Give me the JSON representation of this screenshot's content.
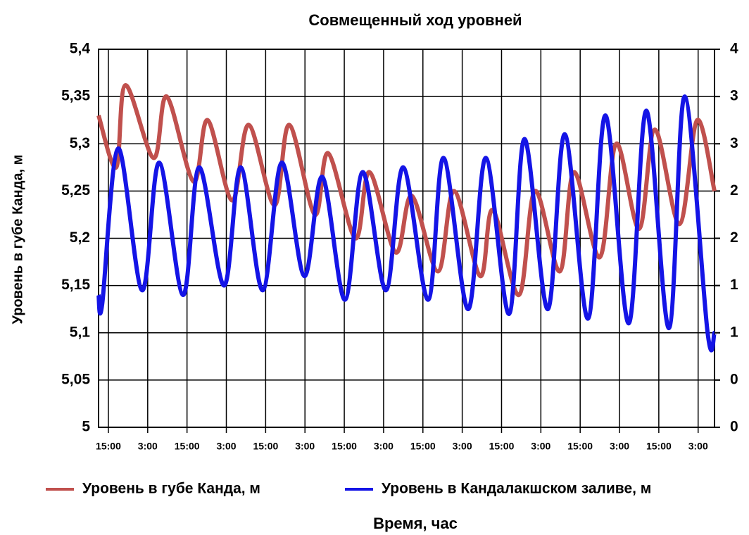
{
  "chart_data": {
    "type": "line",
    "title": "Совмещенный ход уровней",
    "xlabel": "Время, час",
    "ylabel": "Уровень в губе Канда, м",
    "xlim": [
      0,
      188
    ],
    "xticks": [
      {
        "value": 3,
        "label": "15:00"
      },
      {
        "value": 15,
        "label": "3:00"
      },
      {
        "value": 27,
        "label": "15:00"
      },
      {
        "value": 39,
        "label": "3:00"
      },
      {
        "value": 51,
        "label": "15:00"
      },
      {
        "value": 63,
        "label": "3:00"
      },
      {
        "value": 75,
        "label": "15:00"
      },
      {
        "value": 87,
        "label": "3:00"
      },
      {
        "value": 99,
        "label": "15:00"
      },
      {
        "value": 111,
        "label": "3:00"
      },
      {
        "value": 123,
        "label": "15:00"
      },
      {
        "value": 135,
        "label": "3:00"
      },
      {
        "value": 147,
        "label": "15:00"
      },
      {
        "value": 159,
        "label": "3:00"
      },
      {
        "value": 171,
        "label": "15:00"
      },
      {
        "value": 183,
        "label": "3:00"
      }
    ],
    "ylim": [
      5,
      5.4
    ],
    "yticks": [
      5,
      {
        "value": 5.05,
        "label": "5,05"
      },
      {
        "value": 5.1,
        "label": "5,1"
      },
      {
        "value": 5.15,
        "label": "5,15"
      },
      {
        "value": 5.2,
        "label": "5,2"
      },
      {
        "value": 5.25,
        "label": "5,25"
      },
      {
        "value": 5.3,
        "label": "5,3"
      },
      {
        "value": 5.35,
        "label": "5,35"
      },
      {
        "value": 5.4,
        "label": "5,4"
      }
    ],
    "y2lim": [
      0,
      4
    ],
    "y2ticks": [
      0,
      {
        "value": 0.5,
        "label": "0"
      },
      1,
      {
        "value": 1.5,
        "label": "1"
      },
      2,
      {
        "value": 2.5,
        "label": "2"
      },
      3,
      {
        "value": 3.5,
        "label": "3"
      },
      4
    ],
    "grid": true,
    "legend": "bottom",
    "series": [
      {
        "name": "Уровень в губе Канда, м",
        "color": "#c0504d",
        "x": [
          0,
          5.4,
          8.2,
          16.8,
          20.8,
          29.0,
          33.3,
          40.8,
          45.8,
          53.7,
          58.2,
          66.0,
          70.1,
          78.4,
          82.7,
          90.7,
          95.6,
          103.6,
          108.5,
          116.5,
          120.3,
          128.3,
          133.2,
          140.8,
          145.1,
          153.0,
          158.0,
          165.0,
          169.8,
          177.3,
          182.7,
          188
        ],
        "values": [
          5.33,
          5.275,
          5.362,
          5.285,
          5.35,
          5.26,
          5.325,
          5.24,
          5.32,
          5.235,
          5.32,
          5.225,
          5.29,
          5.2,
          5.27,
          5.185,
          5.245,
          5.165,
          5.25,
          5.16,
          5.23,
          5.14,
          5.25,
          5.165,
          5.27,
          5.18,
          5.3,
          5.21,
          5.315,
          5.215,
          5.325,
          5.25
        ]
      },
      {
        "name": "Уровень в Кандалакшском заливе, м",
        "color": "#1414e6",
        "axis": "y2",
        "x": [
          0,
          1.1,
          6.0,
          13.3,
          18.5,
          25.8,
          30.7,
          38.3,
          43.4,
          50.1,
          55.9,
          62.8,
          68.3,
          75.2,
          80.6,
          87.7,
          93.0,
          100.6,
          105.3,
          112.8,
          118.2,
          125.3,
          130.0,
          137.1,
          142.3,
          149.4,
          154.7,
          161.8,
          167.2,
          174.1,
          178.9,
          185.9,
          188
        ],
        "values": [
          1.4,
          1.3,
          2.95,
          1.45,
          2.8,
          1.4,
          2.75,
          1.5,
          2.75,
          1.45,
          2.8,
          1.6,
          2.65,
          1.35,
          2.7,
          1.45,
          2.75,
          1.35,
          2.85,
          1.25,
          2.85,
          1.2,
          3.05,
          1.25,
          3.1,
          1.15,
          3.3,
          1.1,
          3.35,
          1.05,
          3.5,
          1.0,
          1.0
        ]
      }
    ]
  }
}
